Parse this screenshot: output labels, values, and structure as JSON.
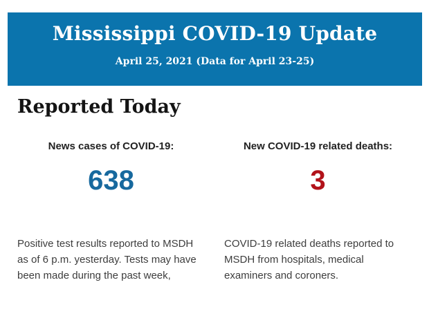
{
  "colors": {
    "page_bg": "#ffffff",
    "banner_bg": "#0b74ad",
    "banner_text": "#ffffff",
    "heading_text": "#141414",
    "label_text": "#222222",
    "cases_value": "#17699e",
    "deaths_value": "#b2121a",
    "note_text": "#3d3d3d"
  },
  "header": {
    "title": "Mississippi COVID-19 Update",
    "subtitle": "April 25, 2021 (Data for April 23-25)"
  },
  "main": {
    "section_title": "Reported Today",
    "stats": [
      {
        "label": "News cases of COVID-19:",
        "value": "638",
        "note": "Positive test results reported to MSDH as of 6 p.m. yesterday. Tests may have been made during the past week,"
      },
      {
        "label": "New COVID-19 related deaths:",
        "value": "3",
        "note": "COVID-19 related deaths reported to MSDH from hospitals, medical examiners and coroners."
      }
    ]
  }
}
